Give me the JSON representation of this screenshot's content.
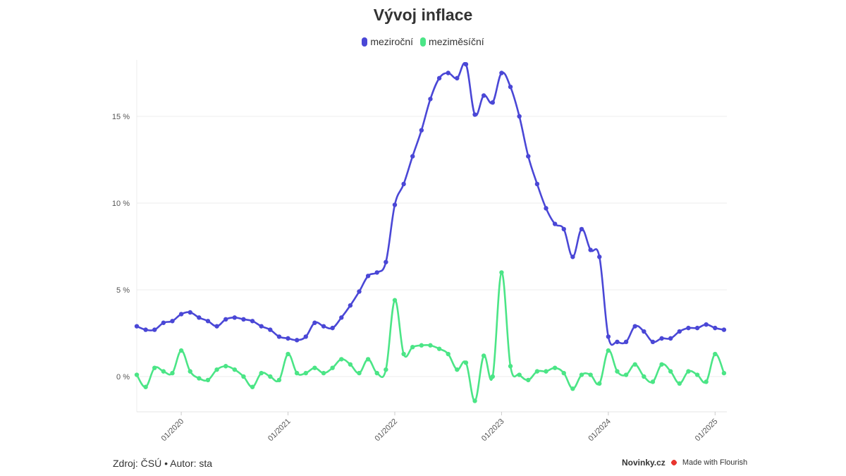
{
  "chart_data": {
    "type": "line",
    "title": "Vývoj inflace",
    "xlabel": "",
    "ylabel": "",
    "ylim": [
      -2,
      18
    ],
    "y_ticks": [
      0,
      5,
      10,
      15
    ],
    "y_tick_labels": [
      "0 %",
      "5 %",
      "10 %",
      "15 %"
    ],
    "x_tick_labels": [
      "01/2020",
      "01/2021",
      "01/2022",
      "01/2023",
      "01/2024",
      "01/2025"
    ],
    "grid": "horizontal",
    "legend_position": "top",
    "x": [
      "08/2019",
      "09/2019",
      "10/2019",
      "11/2019",
      "12/2019",
      "01/2020",
      "02/2020",
      "03/2020",
      "04/2020",
      "05/2020",
      "06/2020",
      "07/2020",
      "08/2020",
      "09/2020",
      "10/2020",
      "11/2020",
      "12/2020",
      "01/2021",
      "02/2021",
      "03/2021",
      "04/2021",
      "05/2021",
      "06/2021",
      "07/2021",
      "08/2021",
      "09/2021",
      "10/2021",
      "11/2021",
      "12/2021",
      "01/2022",
      "02/2022",
      "03/2022",
      "04/2022",
      "05/2022",
      "06/2022",
      "07/2022",
      "08/2022",
      "09/2022",
      "10/2022",
      "11/2022",
      "12/2022",
      "01/2023",
      "02/2023",
      "03/2023",
      "04/2023",
      "05/2023",
      "06/2023",
      "07/2023",
      "08/2023",
      "09/2023",
      "10/2023",
      "11/2023",
      "12/2023",
      "01/2024",
      "02/2024",
      "03/2024",
      "04/2024",
      "05/2024",
      "06/2024",
      "07/2024",
      "08/2024",
      "09/2024",
      "10/2024",
      "11/2024",
      "12/2024",
      "01/2025",
      "02/2025"
    ],
    "series": [
      {
        "name": "meziroční",
        "color": "#4a47d6",
        "values": [
          2.9,
          2.7,
          2.7,
          3.1,
          3.2,
          3.6,
          3.7,
          3.4,
          3.2,
          2.9,
          3.3,
          3.4,
          3.3,
          3.2,
          2.9,
          2.7,
          2.3,
          2.2,
          2.1,
          2.3,
          3.1,
          2.9,
          2.8,
          3.4,
          4.1,
          4.9,
          5.8,
          6.0,
          6.6,
          9.9,
          11.1,
          12.7,
          14.2,
          16.0,
          17.2,
          17.5,
          17.2,
          18.0,
          15.1,
          16.2,
          15.8,
          17.5,
          16.7,
          15.0,
          12.7,
          11.1,
          9.7,
          8.8,
          8.5,
          6.9,
          8.5,
          7.3,
          6.9,
          2.3,
          2.0,
          2.0,
          2.9,
          2.6,
          2.0,
          2.2,
          2.2,
          2.6,
          2.8,
          2.8,
          3.0,
          2.8,
          2.7
        ]
      },
      {
        "name": "meziměsíční",
        "color": "#4be586",
        "values": [
          0.1,
          -0.6,
          0.5,
          0.3,
          0.2,
          1.5,
          0.3,
          -0.1,
          -0.2,
          0.4,
          0.6,
          0.4,
          0.0,
          -0.6,
          0.2,
          0.0,
          -0.2,
          1.3,
          0.2,
          0.2,
          0.5,
          0.2,
          0.5,
          1.0,
          0.7,
          0.2,
          1.0,
          0.2,
          0.4,
          4.4,
          1.3,
          1.7,
          1.8,
          1.8,
          1.6,
          1.3,
          0.4,
          0.8,
          -1.4,
          1.2,
          0.0,
          6.0,
          0.6,
          0.1,
          -0.2,
          0.3,
          0.3,
          0.5,
          0.2,
          -0.7,
          0.1,
          0.1,
          -0.4,
          1.5,
          0.3,
          0.1,
          0.7,
          0.0,
          -0.3,
          0.7,
          0.3,
          -0.4,
          0.3,
          0.1,
          -0.3,
          1.3,
          0.2
        ]
      }
    ]
  },
  "footer": {
    "source": "Zdroj: ČSÚ • Autor: sta",
    "brand": "Novinky.cz",
    "made_with": "Made with Flourish"
  }
}
